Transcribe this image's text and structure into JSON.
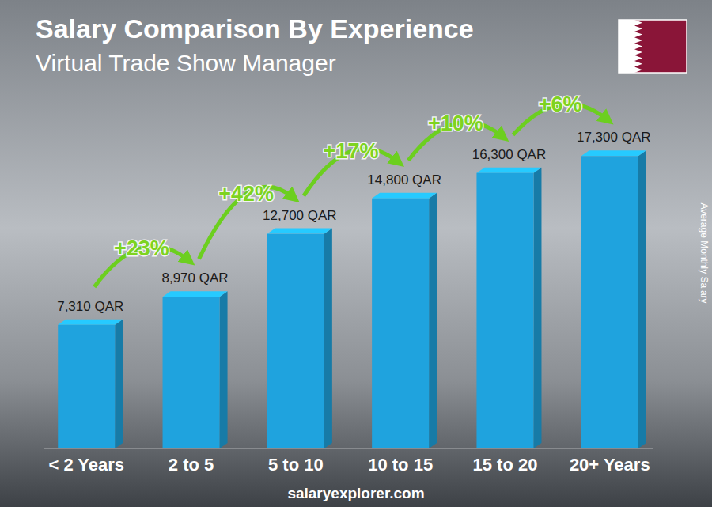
{
  "chart_data": {
    "type": "bar",
    "title": "Salary Comparison By Experience",
    "subtitle": "Virtual Trade Show Manager",
    "ylabel": "Average Monthly Salary",
    "categories": [
      "< 2 Years",
      "2 to 5",
      "5 to 10",
      "10 to 15",
      "15 to 20",
      "20+ Years"
    ],
    "values": [
      7310,
      8970,
      12700,
      14800,
      16300,
      17300
    ],
    "value_labels": [
      "7,310 QAR",
      "8,970 QAR",
      "12,700 QAR",
      "14,800 QAR",
      "16,300 QAR",
      "17,300 QAR"
    ],
    "annotations": [
      "+23%",
      "+42%",
      "+17%",
      "+10%",
      "+6%"
    ],
    "source": "salaryexplorer.com",
    "color": "#1fa3de",
    "ylim": [
      0,
      19000
    ],
    "data_labels": true,
    "tick_labels": "x",
    "grid": false
  }
}
